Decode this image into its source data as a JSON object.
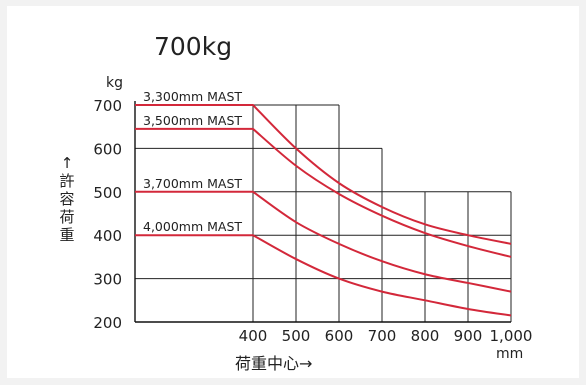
{
  "chart_data": {
    "type": "line",
    "title": "700kg",
    "y_unit": "kg",
    "x_unit": "mm",
    "ylabel_chars": [
      "↑",
      "許",
      "容",
      "荷",
      "重"
    ],
    "xlabel": "荷重中心→",
    "xlim": [
      400,
      1000
    ],
    "ylim": [
      200,
      700
    ],
    "x_ticks": [
      {
        "value": 400,
        "label": "400"
      },
      {
        "value": 500,
        "label": "500"
      },
      {
        "value": 600,
        "label": "600"
      },
      {
        "value": 700,
        "label": "700"
      },
      {
        "value": 800,
        "label": "800"
      },
      {
        "value": 900,
        "label": "900"
      },
      {
        "value": 1000,
        "label": "1,000"
      }
    ],
    "y_ticks": [
      {
        "value": 200,
        "label": "200"
      },
      {
        "value": 300,
        "label": "300"
      },
      {
        "value": 400,
        "label": "400"
      },
      {
        "value": 500,
        "label": "500"
      },
      {
        "value": 600,
        "label": "600"
      },
      {
        "value": 700,
        "label": "700"
      }
    ],
    "grid": true,
    "series_color": "#d3283a",
    "series": [
      {
        "name": "3,300mm MAST",
        "points": [
          [
            400,
            700
          ],
          [
            500,
            600
          ],
          [
            600,
            520
          ],
          [
            700,
            465
          ],
          [
            800,
            425
          ],
          [
            900,
            400
          ],
          [
            1000,
            380
          ]
        ]
      },
      {
        "name": "3,500mm MAST",
        "points": [
          [
            400,
            645
          ],
          [
            500,
            560
          ],
          [
            600,
            495
          ],
          [
            700,
            445
          ],
          [
            800,
            405
          ],
          [
            900,
            375
          ],
          [
            1000,
            350
          ]
        ]
      },
      {
        "name": "3,700mm MAST",
        "points": [
          [
            400,
            500
          ],
          [
            500,
            430
          ],
          [
            600,
            380
          ],
          [
            700,
            340
          ],
          [
            800,
            310
          ],
          [
            900,
            290
          ],
          [
            1000,
            270
          ]
        ]
      },
      {
        "name": "4,000mm MAST",
        "points": [
          [
            400,
            400
          ],
          [
            500,
            345
          ],
          [
            600,
            300
          ],
          [
            700,
            270
          ],
          [
            800,
            250
          ],
          [
            900,
            230
          ],
          [
            1000,
            215
          ]
        ]
      }
    ]
  }
}
